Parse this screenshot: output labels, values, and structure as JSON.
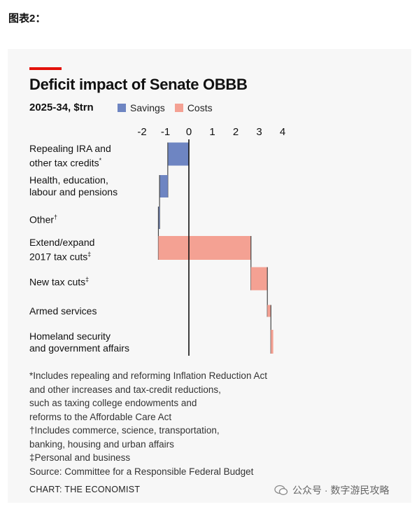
{
  "page": {
    "header_label": "图表2：",
    "source_credit": "CHART: THE ECONOMIST",
    "wechat_watermark": "公众号 · 数字游民攻略"
  },
  "colors": {
    "savings": "#6e85c2",
    "costs": "#f4a193",
    "accent_red": "#e3120b",
    "connector": "#444444"
  },
  "chart_data": {
    "type": "bar",
    "subtype": "horizontal-waterfall",
    "title": "Deficit impact of Senate OBBB",
    "subtitle": "2025-34, $trn",
    "legend": [
      {
        "name": "Savings",
        "color": "#6e85c2"
      },
      {
        "name": "Costs",
        "color": "#f4a193"
      }
    ],
    "legend_position": "top",
    "xlim": [
      -2,
      4
    ],
    "x_ticks": [
      -2,
      -1,
      0,
      1,
      2,
      3,
      4
    ],
    "x_tick_labels": [
      "-2",
      "-1",
      "0",
      "1",
      "2",
      "3",
      "4"
    ],
    "grid": false,
    "categories": [
      {
        "label": "Repealing IRA and\nother tax credits",
        "mark": "*",
        "start": 0,
        "end": -0.9,
        "kind": "Savings"
      },
      {
        "label": "Health, education,\nlabour and pensions",
        "mark": "",
        "start": -0.9,
        "end": -1.25,
        "kind": "Savings"
      },
      {
        "label": "Other",
        "mark": "†",
        "start": -1.25,
        "end": -1.3,
        "kind": "Savings"
      },
      {
        "label": "Extend/expand\n2017 tax cuts",
        "mark": "‡",
        "start": -1.3,
        "end": 2.65,
        "kind": "Costs"
      },
      {
        "label": "New tax cuts",
        "mark": "‡",
        "start": 2.65,
        "end": 3.35,
        "kind": "Costs"
      },
      {
        "label": "Armed services",
        "mark": "",
        "start": 3.35,
        "end": 3.5,
        "kind": "Costs"
      },
      {
        "label": "Homeland security\nand government affairs",
        "mark": "",
        "start": 3.5,
        "end": 3.6,
        "kind": "Costs"
      }
    ],
    "footnotes": [
      "*Includes repealing and reforming Inflation Reduction Act",
      "and other increases and tax-credit reductions,",
      "such as taxing college endowments and",
      "reforms to the Affordable Care Act",
      "†Includes commerce, science, transportation,",
      "banking, housing and urban affairs",
      "‡Personal and business",
      "Source: Committee for a Responsible Federal Budget"
    ]
  }
}
